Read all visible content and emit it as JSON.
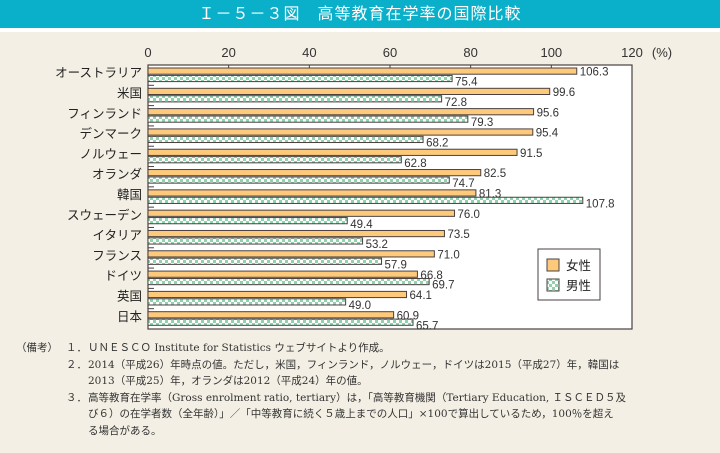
{
  "title": "Ｉ－５－３図　高等教育在学率の国際比較",
  "chart_data": {
    "type": "bar",
    "orientation": "horizontal",
    "title": "高等教育在学率の国際比較",
    "categories": [
      "オーストラリア",
      "米国",
      "フィンランド",
      "デンマーク",
      "ノルウェー",
      "オランダ",
      "韓国",
      "スウェーデン",
      "イタリア",
      "フランス",
      "ドイツ",
      "英国",
      "日本"
    ],
    "series": [
      {
        "name": "女性",
        "color": "#fdca7c",
        "pattern": "solid",
        "values": [
          106.3,
          99.6,
          95.6,
          95.4,
          91.5,
          82.5,
          81.3,
          76.0,
          73.5,
          71.0,
          66.8,
          64.1,
          60.9
        ],
        "labels": [
          "106.3",
          "99.6",
          "95.6",
          "95.4",
          "91.5",
          "82.5",
          "81.3",
          "76.0",
          "73.5",
          "71.0",
          "66.8",
          "64.1",
          "60.9"
        ]
      },
      {
        "name": "男性",
        "color": "#8fd3ad",
        "pattern": "checker",
        "values": [
          75.4,
          72.8,
          79.3,
          68.2,
          62.8,
          74.7,
          107.8,
          49.4,
          53.2,
          57.9,
          69.7,
          49.0,
          65.7
        ],
        "labels": [
          "75.4",
          "72.8",
          "79.3",
          "68.2",
          "62.8",
          "74.7",
          "107.8",
          "49.4",
          "53.2",
          "57.9",
          "69.7",
          "49.0",
          "65.7"
        ]
      }
    ],
    "xlim": [
      0,
      120
    ],
    "xticks": [
      "0",
      "20",
      "40",
      "60",
      "80",
      "100",
      "120"
    ],
    "xunit": "(%)",
    "legend": {
      "placement": "bottom-right",
      "entries": [
        "女性",
        "男性"
      ]
    },
    "grid": false
  },
  "notes": {
    "head": "（備考）",
    "items": [
      {
        "num": "１．",
        "lines": [
          "ＵＮＥＳＣＯ Institute for Statistics ウェブサイトより作成。"
        ]
      },
      {
        "num": "２．",
        "lines": [
          "2014（平成26）年時点の値。ただし，米国，フィンランド，ノルウェー，ドイツは2015（平成27）年，韓国は",
          "2013（平成25）年，オランダは2012（平成24）年の値。"
        ]
      },
      {
        "num": "３．",
        "lines": [
          "高等教育在学率（Gross enrolment ratio, tertiary）は，「高等教育機関（Tertiary Education, ＩＳＣＥＤ５及",
          "び６）の在学者数（全年齢）」／「中等教育に続く５歳上までの人口」×100で算出しているため，100％を超え",
          "る場合がある。"
        ]
      }
    ]
  }
}
